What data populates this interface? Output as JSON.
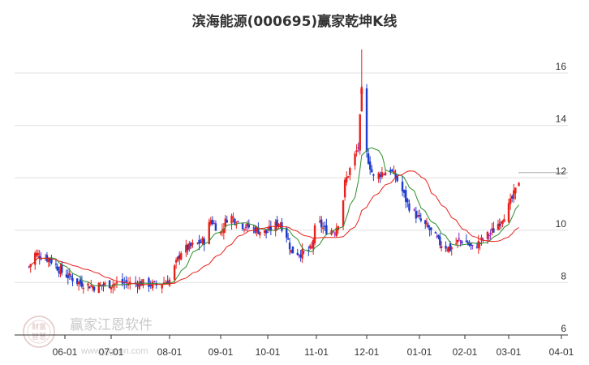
{
  "chart_data": {
    "type": "candlestick",
    "title": "滨海能源(000695)赢家乾坤K线",
    "xlabel": "",
    "ylabel": "",
    "ylim": [
      6,
      17.3
    ],
    "yticks": [
      6,
      8,
      10,
      12,
      14,
      16
    ],
    "ytick_labels": [
      "6",
      "8",
      "10",
      "12",
      "14",
      "16"
    ],
    "x_ticks": [
      "06-01",
      "07-01",
      "08-01",
      "09-01",
      "10-01",
      "11-01",
      "12-01",
      "01-01",
      "02-01",
      "03-01",
      "04-01"
    ],
    "grid": "horizontal",
    "colors": {
      "up": "#e8201b",
      "down": "#1f3ccc",
      "neutral": "#8a1fbf",
      "ma_short": "#2c8c2c",
      "ma_long": "#e8201b",
      "grid": "#e0e0e0",
      "axis": "#333333"
    },
    "anchors": [
      [
        "05-08",
        8.6
      ],
      [
        "05-12",
        9.1
      ],
      [
        "05-22",
        8.9
      ],
      [
        "05-30",
        8.4
      ],
      [
        "06-10",
        8.0
      ],
      [
        "06-20",
        7.85
      ],
      [
        "07-01",
        7.95
      ],
      [
        "07-15",
        8.0
      ],
      [
        "07-25",
        7.9
      ],
      [
        "08-01",
        8.1
      ],
      [
        "08-08",
        9.2
      ],
      [
        "08-15",
        9.4
      ],
      [
        "08-22",
        9.6
      ],
      [
        "08-26",
        10.4
      ],
      [
        "09-01",
        9.9
      ],
      [
        "09-06",
        10.6
      ],
      [
        "09-15",
        10.2
      ],
      [
        "09-25",
        10.0
      ],
      [
        "09-30",
        9.9
      ],
      [
        "10-08",
        10.3
      ],
      [
        "10-12",
        10.0
      ],
      [
        "10-16",
        9.2
      ],
      [
        "10-25",
        9.1
      ],
      [
        "10-29",
        9.3
      ],
      [
        "11-01",
        10.4
      ],
      [
        "11-06",
        10.0
      ],
      [
        "11-12",
        10.0
      ],
      [
        "11-16",
        10.6
      ],
      [
        "11-18",
        11.8
      ],
      [
        "11-22",
        12.5
      ],
      [
        "11-26",
        13.2
      ],
      [
        "11-28",
        15.3
      ],
      [
        "12-01",
        12.9
      ],
      [
        "12-05",
        12.0
      ],
      [
        "12-10",
        12.2
      ],
      [
        "12-15",
        12.3
      ],
      [
        "12-20",
        11.8
      ],
      [
        "12-25",
        11.0
      ],
      [
        "01-01",
        10.4
      ],
      [
        "01-08",
        10.0
      ],
      [
        "01-15",
        9.5
      ],
      [
        "01-22",
        9.3
      ],
      [
        "01-28",
        9.6
      ],
      [
        "02-01",
        9.6
      ],
      [
        "02-06",
        9.3
      ],
      [
        "02-12",
        9.6
      ],
      [
        "02-20",
        10.0
      ],
      [
        "02-26",
        10.5
      ],
      [
        "03-01",
        10.9
      ],
      [
        "03-05",
        11.5
      ],
      [
        "03-07",
        11.9
      ]
    ],
    "highlight": {
      "date": "11-28",
      "high": 16.9,
      "open": 15.4,
      "close": 15.2,
      "low": 15.0
    },
    "last_close": 12.2,
    "ma_short_period": 10,
    "ma_long_period": 30,
    "watermark": {
      "text": "赢家江恩软件",
      "url": "www.yjgann.com",
      "seal": [
        "财富",
        "智慧"
      ]
    }
  }
}
